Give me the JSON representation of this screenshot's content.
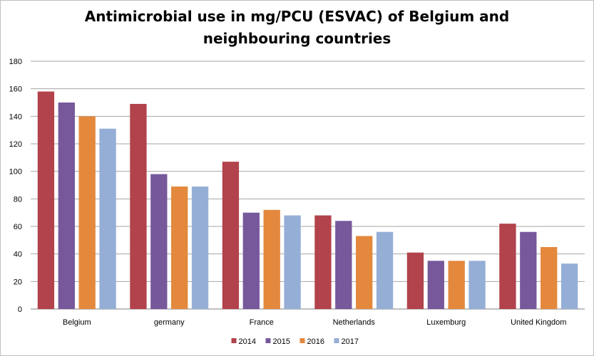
{
  "chart_data": {
    "type": "bar",
    "title_line1": "Antimicrobial use in mg/PCU (ESVAC) of Belgium and",
    "title_line2": "neighbouring countries",
    "categories": [
      "Belgium",
      "germany",
      "France",
      "Netherlands",
      "Luxemburg",
      "United Kingdom"
    ],
    "series": [
      {
        "name": "2014",
        "color": "#b2424b",
        "values": [
          158,
          149,
          107,
          68,
          41,
          62
        ]
      },
      {
        "name": "2015",
        "color": "#77589b",
        "values": [
          150,
          98,
          70,
          64,
          35,
          56
        ]
      },
      {
        "name": "2016",
        "color": "#e3883d",
        "values": [
          140,
          89,
          72,
          53,
          35,
          45
        ]
      },
      {
        "name": "2017",
        "color": "#95aed6",
        "values": [
          131,
          89,
          68,
          56,
          35,
          33
        ]
      }
    ],
    "ylim": [
      0,
      180
    ],
    "yticks": [
      0,
      20,
      40,
      60,
      80,
      100,
      120,
      140,
      160,
      180
    ],
    "grid": true,
    "legend_position": "bottom"
  }
}
